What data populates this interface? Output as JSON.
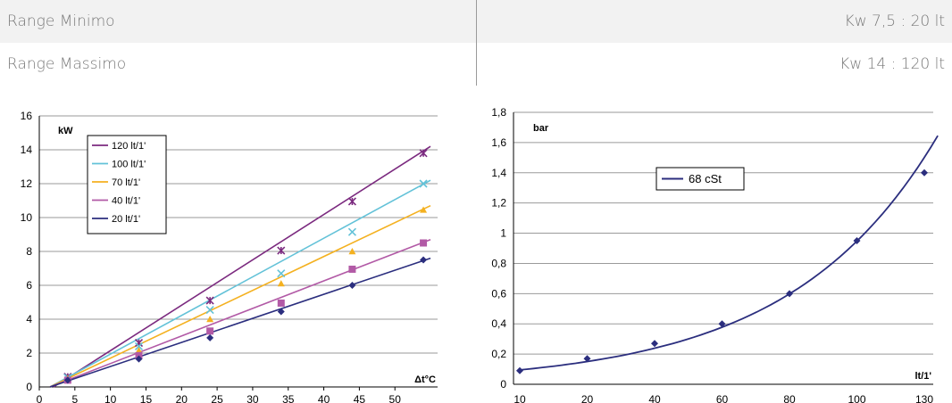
{
  "specs": [
    {
      "label": "Range Minimo",
      "value": "Kw 7,5 : 20 lt"
    },
    {
      "label": "Range Massimo",
      "value": "Kw 14 : 120 lt"
    }
  ],
  "chart_data": [
    {
      "type": "scatter",
      "ylabel": "kW",
      "xlabel": "Δt°C",
      "xlim": [
        0,
        56
      ],
      "ylim": [
        0,
        16
      ],
      "x_ticks": [
        0,
        5,
        10,
        15,
        20,
        25,
        30,
        35,
        40,
        45,
        50
      ],
      "y_ticks": [
        0,
        2,
        4,
        6,
        8,
        10,
        12,
        14,
        16
      ],
      "grid": true,
      "legend_position": "top-left",
      "trendlines": true,
      "series": [
        {
          "name": "120 lt/1'",
          "color": "#7b2a7f",
          "marker": "asterisk",
          "x": [
            4,
            14,
            24,
            34,
            44,
            54
          ],
          "y": [
            0.6,
            2.6,
            5.1,
            8.05,
            10.95,
            13.8
          ],
          "trend": [
            2,
            0,
            55,
            14.2
          ]
        },
        {
          "name": "100 lt/1'",
          "color": "#63c2d8",
          "marker": "x",
          "x": [
            4,
            14,
            24,
            34,
            44,
            54
          ],
          "y": [
            0.55,
            2.4,
            4.55,
            6.7,
            9.15,
            12.0
          ],
          "trend": [
            1.5,
            0,
            55,
            12.2
          ]
        },
        {
          "name": "70 lt/1'",
          "color": "#f4b120",
          "marker": "triangle",
          "x": [
            4,
            14,
            24,
            34,
            44,
            54
          ],
          "y": [
            0.5,
            2.15,
            4.0,
            6.1,
            8.0,
            10.45
          ],
          "trend": [
            1.5,
            0,
            55,
            10.7
          ]
        },
        {
          "name": "40 lt/1'",
          "color": "#b25aa6",
          "marker": "square",
          "x": [
            4,
            14,
            24,
            34,
            44,
            54
          ],
          "y": [
            0.4,
            1.85,
            3.3,
            4.95,
            6.95,
            8.5
          ],
          "trend": [
            1.5,
            0,
            55,
            8.7
          ]
        },
        {
          "name": "20 lt/1'",
          "color": "#2b2e7e",
          "marker": "diamond",
          "x": [
            4,
            14,
            24,
            34,
            44,
            54
          ],
          "y": [
            0.4,
            1.65,
            2.9,
            4.45,
            6.0,
            7.5
          ],
          "trend": [
            1.5,
            0,
            55,
            7.6
          ]
        }
      ]
    },
    {
      "type": "scatter",
      "ylabel": "bar",
      "xlabel": "lt/1'",
      "categories": [
        "10",
        "20",
        "40",
        "60",
        "80",
        "100",
        "130"
      ],
      "ylim": [
        0,
        1.8
      ],
      "y_ticks": [
        "0",
        "0,2",
        "0,4",
        "0,6",
        "0,8",
        "1",
        "1,2",
        "1,4",
        "1,6",
        "1,8"
      ],
      "grid": true,
      "legend_position": "top-center",
      "trendline": "exponential",
      "series": [
        {
          "name": "68 cSt",
          "color": "#2b2e7e",
          "marker": "diamond",
          "values": [
            0.09,
            0.17,
            0.27,
            0.4,
            0.6,
            0.95,
            1.4
          ]
        }
      ]
    }
  ]
}
